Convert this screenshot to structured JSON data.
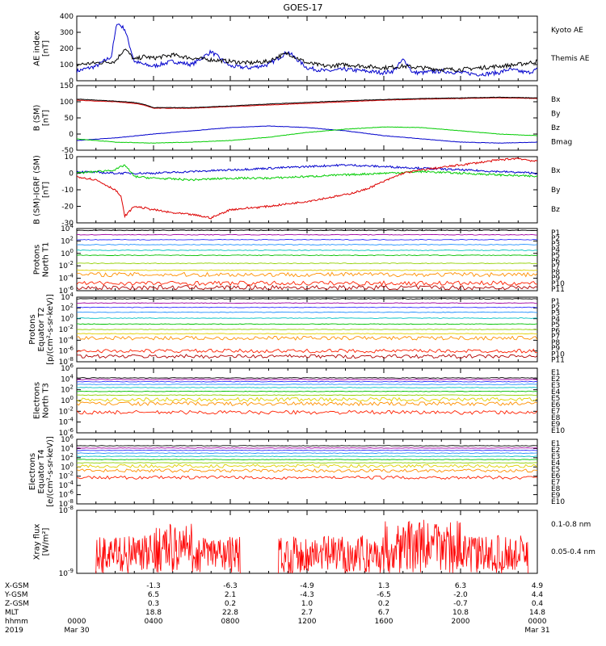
{
  "title": "GOES-17",
  "colors": {
    "black": "#000000",
    "blue": "#0000cc",
    "green": "#00cc00",
    "red": "#dd0000",
    "p_series": [
      "#000000",
      "#a000a0",
      "#3030ff",
      "#2090ff",
      "#00c0c0",
      "#00c000",
      "#90d000",
      "#e0d000",
      "#ff9000",
      "#ff2000",
      "#b00000"
    ],
    "e_series": [
      "#000000",
      "#a000a0",
      "#3030ff",
      "#2090ff",
      "#00c0c0",
      "#00c000",
      "#90d000",
      "#e0d000",
      "#ff9000",
      "#ff2000",
      "#b00000"
    ]
  },
  "chart_data": [
    {
      "type": "line",
      "panel": "ae",
      "ylabel": [
        "AE index",
        "[nT]"
      ],
      "yticks": [
        "400",
        "300",
        "200",
        "100",
        "0"
      ],
      "ylim": [
        0,
        400
      ],
      "legend": [
        {
          "name": "Kyoto AE",
          "color": "#0000cc"
        },
        {
          "name": "Themis AE",
          "color": "#000000"
        }
      ],
      "series": [
        {
          "name": "Kyoto AE",
          "color": "#0000cc",
          "x": [
            0,
            1,
            1.8,
            2.1,
            2.5,
            3,
            3.5,
            4,
            5,
            6,
            7,
            8,
            9,
            9.5,
            10,
            10.5,
            11,
            12,
            13,
            14,
            15,
            16,
            16.5,
            17,
            17.2,
            17.5,
            18,
            19,
            20,
            21,
            22,
            22.5,
            23,
            23.5,
            24
          ],
          "y": [
            60,
            90,
            150,
            360,
            320,
            120,
            100,
            90,
            120,
            100,
            180,
            90,
            80,
            90,
            100,
            140,
            180,
            80,
            60,
            70,
            60,
            50,
            60,
            130,
            110,
            50,
            50,
            60,
            50,
            40,
            50,
            70,
            60,
            50,
            70
          ]
        },
        {
          "name": "Themis AE",
          "color": "#000000",
          "x": [
            0,
            1,
            2,
            2.5,
            3,
            3.5,
            4,
            5,
            6,
            7,
            8,
            9,
            10,
            10.5,
            11,
            12,
            13,
            14,
            15,
            16,
            17,
            18,
            19,
            20,
            21,
            22,
            23,
            24
          ],
          "y": [
            100,
            110,
            120,
            200,
            130,
            150,
            140,
            160,
            140,
            130,
            120,
            110,
            120,
            150,
            170,
            110,
            90,
            100,
            90,
            80,
            90,
            80,
            70,
            70,
            80,
            90,
            100,
            120
          ]
        }
      ]
    },
    {
      "type": "line",
      "panel": "b",
      "ylabel": [
        "B (SM)",
        "[nT]"
      ],
      "yticks": [
        "150",
        "100",
        "50",
        "0",
        "-50"
      ],
      "ylim": [
        -50,
        150
      ],
      "legend": [
        {
          "name": "Bx",
          "color": "#0000cc"
        },
        {
          "name": "By",
          "color": "#00cc00"
        },
        {
          "name": "Bz",
          "color": "#dd0000"
        },
        {
          "name": "Bmag",
          "color": "#000000"
        }
      ],
      "series": [
        {
          "name": "Bx",
          "color": "#0000cc",
          "x": [
            0,
            2,
            4,
            6,
            8,
            10,
            12,
            14,
            16,
            18,
            20,
            22,
            24
          ],
          "y": [
            -20,
            -12,
            0,
            10,
            20,
            25,
            20,
            10,
            -5,
            -15,
            -25,
            -28,
            -25
          ]
        },
        {
          "name": "By",
          "color": "#00cc00",
          "x": [
            0,
            2,
            4,
            6,
            8,
            10,
            12,
            14,
            16,
            18,
            20,
            22,
            24
          ],
          "y": [
            -15,
            -25,
            -28,
            -25,
            -20,
            -10,
            5,
            15,
            22,
            20,
            10,
            0,
            -5
          ]
        },
        {
          "name": "Bz",
          "color": "#dd0000",
          "x": [
            0,
            1,
            2,
            3,
            3.5,
            4,
            6,
            8,
            10,
            12,
            14,
            16,
            18,
            20,
            22,
            24
          ],
          "y": [
            105,
            102,
            100,
            95,
            90,
            80,
            80,
            85,
            90,
            95,
            100,
            105,
            108,
            110,
            112,
            110
          ]
        },
        {
          "name": "Bmag",
          "color": "#000000",
          "x": [
            0,
            1,
            2,
            3,
            3.5,
            4,
            6,
            8,
            10,
            12,
            14,
            16,
            18,
            20,
            22,
            24
          ],
          "y": [
            108,
            105,
            102,
            98,
            92,
            82,
            82,
            87,
            93,
            98,
            103,
            107,
            110,
            112,
            114,
            112
          ]
        }
      ]
    },
    {
      "type": "line",
      "panel": "bdiff",
      "ylabel": [
        "B (SM)-IGRF (SM)",
        "[nT]"
      ],
      "yticks": [
        "10",
        "0",
        "-10",
        "-20",
        "-30"
      ],
      "ylim": [
        -30,
        10
      ],
      "legend": [
        {
          "name": "Bx",
          "color": "#0000cc"
        },
        {
          "name": "By",
          "color": "#00cc00"
        },
        {
          "name": "Bz",
          "color": "#dd0000"
        }
      ],
      "series": [
        {
          "name": "Bx",
          "color": "#0000cc",
          "x": [
            0,
            2,
            4,
            6,
            8,
            10,
            12,
            14,
            16,
            18,
            20,
            22,
            24
          ],
          "y": [
            1,
            0,
            0,
            1,
            2,
            3,
            4,
            5,
            4,
            3,
            2,
            1,
            0
          ]
        },
        {
          "name": "By",
          "color": "#00cc00",
          "x": [
            0,
            2,
            2.5,
            3,
            4,
            6,
            8,
            10,
            12,
            14,
            16,
            18,
            20,
            22,
            24
          ],
          "y": [
            0,
            2,
            5,
            -2,
            -3,
            -4,
            -3,
            -3,
            -2,
            -1,
            0,
            1,
            0,
            -1,
            -2
          ]
        },
        {
          "name": "Bz",
          "color": "#dd0000",
          "x": [
            0,
            1,
            2,
            2.3,
            2.5,
            3,
            4,
            5,
            6,
            7,
            8,
            10,
            12,
            14,
            15,
            16,
            17,
            18,
            20,
            22,
            23,
            24
          ],
          "y": [
            -2,
            -4,
            -10,
            -14,
            -26,
            -20,
            -22,
            -24,
            -25,
            -27,
            -22,
            -20,
            -17,
            -13,
            -10,
            -5,
            0,
            2,
            5,
            8,
            9,
            7
          ]
        }
      ]
    },
    {
      "type": "line",
      "panel": "p1",
      "ylabel": [
        "Protons",
        "North T1"
      ],
      "yticks": [
        "10^4",
        "10^2",
        "10^0",
        "10^-2",
        "10^-4",
        "10^-6"
      ],
      "ylim": [
        -6,
        4
      ],
      "legend": [
        {
          "name": "P1"
        },
        {
          "name": "P2"
        },
        {
          "name": "P3"
        },
        {
          "name": "P4"
        },
        {
          "name": "P5"
        },
        {
          "name": "P6"
        },
        {
          "name": "P7"
        },
        {
          "name": "P8"
        },
        {
          "name": "P9"
        },
        {
          "name": "P10"
        },
        {
          "name": "P11"
        }
      ],
      "series": [
        {
          "name": "P1",
          "log10": 3.7
        },
        {
          "name": "P2",
          "log10": 3.0
        },
        {
          "name": "P3",
          "log10": 2.2
        },
        {
          "name": "P4",
          "log10": 1.4
        },
        {
          "name": "P5",
          "log10": 0.5
        },
        {
          "name": "P6",
          "log10": -0.3
        },
        {
          "name": "P7",
          "log10": -1.6
        },
        {
          "name": "P8",
          "log10": -2.7
        },
        {
          "name": "P9",
          "log10": -3.4
        },
        {
          "name": "P10",
          "log10": -4.8
        },
        {
          "name": "P11",
          "log10": -5.5
        }
      ]
    },
    {
      "type": "line",
      "panel": "p2",
      "ylabel": [
        "Protons",
        "Equator T2",
        "[p/(cm²-s-sr-keV)]"
      ],
      "yticks": [
        "10^4",
        "10^2",
        "10^0",
        "10^-2",
        "10^-4",
        "10^-6",
        "10^-8"
      ],
      "ylim": [
        -8,
        4
      ],
      "legend": [
        {
          "name": "P1"
        },
        {
          "name": "P2"
        },
        {
          "name": "P3"
        },
        {
          "name": "P4"
        },
        {
          "name": "P5"
        },
        {
          "name": "P6"
        },
        {
          "name": "P7"
        },
        {
          "name": "P8"
        },
        {
          "name": "P9"
        },
        {
          "name": "P10"
        },
        {
          "name": "P11"
        }
      ],
      "series": [
        {
          "name": "P1",
          "log10": 3.7
        },
        {
          "name": "P2",
          "log10": 2.9
        },
        {
          "name": "P3",
          "log10": 2.1
        },
        {
          "name": "P4",
          "log10": 1.2
        },
        {
          "name": "P5",
          "log10": 0.1
        },
        {
          "name": "P6",
          "log10": -1.0
        },
        {
          "name": "P7",
          "log10": -2.0
        },
        {
          "name": "P8",
          "log10": -2.8
        },
        {
          "name": "P9",
          "log10": -3.6
        },
        {
          "name": "P10",
          "log10": -6.0
        },
        {
          "name": "P11",
          "log10": -7.0
        }
      ]
    },
    {
      "type": "line",
      "panel": "e1",
      "ylabel": [
        "Electrons",
        "North T3"
      ],
      "yticks": [
        "10^6",
        "10^4",
        "10^2",
        "10^0",
        "10^-2",
        "10^-4",
        "10^-6"
      ],
      "ylim": [
        -6,
        6
      ],
      "legend": [
        {
          "name": "E1"
        },
        {
          "name": "E2"
        },
        {
          "name": "E3"
        },
        {
          "name": "E4"
        },
        {
          "name": "E5"
        },
        {
          "name": "E6"
        },
        {
          "name": "E7"
        },
        {
          "name": "E8"
        },
        {
          "name": "E9"
        },
        {
          "name": "E10"
        }
      ],
      "series": [
        {
          "name": "E1",
          "log10": 4.2
        },
        {
          "name": "E2",
          "log10": 3.9
        },
        {
          "name": "E3",
          "log10": 3.5
        },
        {
          "name": "E4",
          "log10": 3.0
        },
        {
          "name": "E5",
          "log10": 2.4
        },
        {
          "name": "E6",
          "log10": 1.7
        },
        {
          "name": "E7",
          "log10": 1.0
        },
        {
          "name": "E8",
          "log10": 0.2
        },
        {
          "name": "E9",
          "log10": -0.6
        },
        {
          "name": "E10",
          "log10": -2.2
        }
      ]
    },
    {
      "type": "line",
      "panel": "e2",
      "ylabel": [
        "Electrons",
        "Equator T4",
        "[e/(cm²-s-sr-keV)]"
      ],
      "yticks": [
        "10^6",
        "10^4",
        "10^2",
        "10^0",
        "10^-2",
        "10^-4",
        "10^-6",
        "10^-8"
      ],
      "ylim": [
        -8,
        6
      ],
      "legend": [
        {
          "name": "E1"
        },
        {
          "name": "E2"
        },
        {
          "name": "E3"
        },
        {
          "name": "E4"
        },
        {
          "name": "E5"
        },
        {
          "name": "E6"
        },
        {
          "name": "E7"
        },
        {
          "name": "E8"
        },
        {
          "name": "E9"
        },
        {
          "name": "E10"
        }
      ],
      "series": [
        {
          "name": "E1",
          "log10": 4.6
        },
        {
          "name": "E2",
          "log10": 4.1
        },
        {
          "name": "E3",
          "log10": 3.6
        },
        {
          "name": "E4",
          "log10": 3.0
        },
        {
          "name": "E5",
          "log10": 2.3
        },
        {
          "name": "E6",
          "log10": 1.6
        },
        {
          "name": "E7",
          "log10": 0.9
        },
        {
          "name": "E8",
          "log10": 0.2
        },
        {
          "name": "E9",
          "log10": -0.8
        },
        {
          "name": "E10",
          "log10": -2.3
        }
      ]
    },
    {
      "type": "line",
      "panel": "xray",
      "ylabel": [
        "Xray flux",
        "[W/m²]"
      ],
      "yticks": [
        "10^-8",
        "10^-9"
      ],
      "ylim": [
        -9,
        -8
      ],
      "legend": [
        {
          "name": "0.1-0.8 nm",
          "color": "#ff0000"
        },
        {
          "name": "0.05-0.4 nm",
          "color": "#0000cc"
        }
      ],
      "series": [
        {
          "name": "0.1-0.8 nm",
          "color": "#ff0000"
        }
      ]
    }
  ],
  "ephemeris": {
    "labels": [
      "X-GSM",
      "Y-GSM",
      "Z-GSM",
      "MLT",
      "hhmm",
      "2019"
    ],
    "columns": [
      {
        "hhmm": "0000",
        "date": "Mar 30",
        "x": "",
        "y": "",
        "z": "",
        "mlt": ""
      },
      {
        "hhmm": "0400",
        "date": "",
        "x": "-1.3",
        "y": "6.5",
        "z": "0.3",
        "mlt": "18.8"
      },
      {
        "hhmm": "0800",
        "date": "",
        "x": "-6.3",
        "y": "2.1",
        "z": "0.2",
        "mlt": "22.8"
      },
      {
        "hhmm": "1200",
        "date": "",
        "x": "-4.9",
        "y": "-4.3",
        "z": "1.0",
        "mlt": "2.7"
      },
      {
        "hhmm": "1600",
        "date": "",
        "x": "1.3",
        "y": "-6.5",
        "z": "0.2",
        "mlt": "6.7"
      },
      {
        "hhmm": "2000",
        "date": "",
        "x": "6.3",
        "y": "-2.0",
        "z": "-0.7",
        "mlt": "10.8"
      },
      {
        "hhmm": "0000",
        "date": "Mar 31",
        "x": "4.9",
        "y": "4.4",
        "z": "0.4",
        "mlt": "14.8"
      }
    ]
  }
}
